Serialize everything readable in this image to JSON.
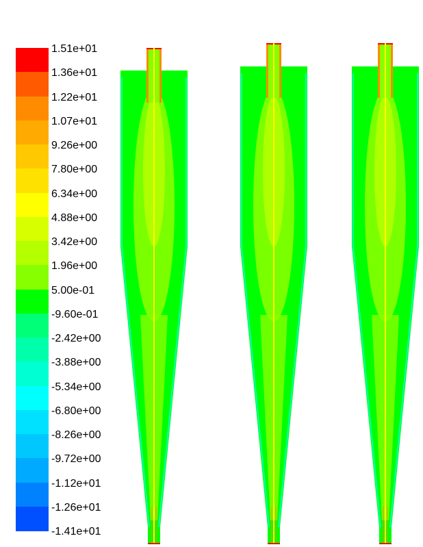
{
  "legend": {
    "levels": [
      {
        "label": "1.51e+01",
        "color": "#ff0000"
      },
      {
        "label": "1.36e+01",
        "color": "#ff5a00"
      },
      {
        "label": "1.22e+01",
        "color": "#ff8c00"
      },
      {
        "label": "1.07e+01",
        "color": "#ffaa00"
      },
      {
        "label": "9.26e+00",
        "color": "#ffc800"
      },
      {
        "label": "7.80e+00",
        "color": "#ffe100"
      },
      {
        "label": "6.34e+00",
        "color": "#ffff00"
      },
      {
        "label": "4.88e+00",
        "color": "#d7ff00"
      },
      {
        "label": "3.42e+00",
        "color": "#b4ff00"
      },
      {
        "label": "1.96e+00",
        "color": "#87ff00"
      },
      {
        "label": "5.00e-01",
        "color": "#00ff00"
      },
      {
        "label": "-9.60e-01",
        "color": "#00ff78"
      },
      {
        "label": "-2.42e+00",
        "color": "#00ffaa"
      },
      {
        "label": "-3.88e+00",
        "color": "#00ffd2"
      },
      {
        "label": "-5.34e+00",
        "color": "#00ffff"
      },
      {
        "label": "-6.80e+00",
        "color": "#00e1ff"
      },
      {
        "label": "-8.26e+00",
        "color": "#00c8ff"
      },
      {
        "label": "-9.72e+00",
        "color": "#00aaff"
      },
      {
        "label": "-1.12e+01",
        "color": "#0082ff"
      },
      {
        "label": "-1.26e+01",
        "color": "#0050ff"
      },
      {
        "label": "-1.41e+01",
        "color": "#0000ff"
      }
    ]
  },
  "panels": 3,
  "palette": {
    "body": "#00ff00",
    "wall": "#00ffb4",
    "core": "#87ff00",
    "core_inner": "#b4ff00",
    "axis": "#ffff00",
    "axis_edge": "#ff8c00",
    "tip": "#ff0000"
  }
}
